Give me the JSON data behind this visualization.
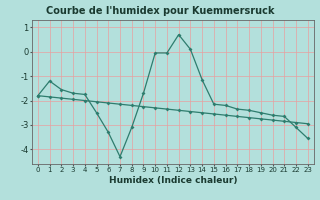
{
  "title": "Courbe de l'humidex pour Kuemmersruck",
  "xlabel": "Humidex (Indice chaleur)",
  "bg_color": "#b3e0dc",
  "grid_color": "#e8a0a0",
  "line_color": "#2e7d6e",
  "x_values": [
    0,
    1,
    2,
    3,
    4,
    5,
    6,
    7,
    8,
    9,
    10,
    11,
    12,
    13,
    14,
    15,
    16,
    17,
    18,
    19,
    20,
    21,
    22,
    23
  ],
  "line1_y": [
    -1.8,
    -1.2,
    -1.55,
    -1.7,
    -1.75,
    -2.5,
    -3.3,
    -4.3,
    -3.1,
    -1.7,
    -0.05,
    -0.05,
    0.7,
    0.1,
    -1.15,
    -2.15,
    -2.2,
    -2.35,
    -2.4,
    -2.5,
    -2.6,
    -2.65,
    -3.1,
    -3.55
  ],
  "line2_y": [
    -1.8,
    -1.85,
    -1.9,
    -1.95,
    -2.0,
    -2.05,
    -2.1,
    -2.15,
    -2.2,
    -2.25,
    -2.3,
    -2.35,
    -2.4,
    -2.45,
    -2.5,
    -2.55,
    -2.6,
    -2.65,
    -2.7,
    -2.75,
    -2.8,
    -2.85,
    -2.9,
    -2.95
  ],
  "ylim": [
    -4.6,
    1.3
  ],
  "xlim": [
    -0.5,
    23.5
  ],
  "yticks": [
    1,
    0,
    -1,
    -2,
    -3,
    -4
  ],
  "xticks": [
    0,
    1,
    2,
    3,
    4,
    5,
    6,
    7,
    8,
    9,
    10,
    11,
    12,
    13,
    14,
    15,
    16,
    17,
    18,
    19,
    20,
    21,
    22,
    23
  ],
  "title_fontsize": 7,
  "xlabel_fontsize": 6.5,
  "tick_fontsize": 5,
  "ytick_fontsize": 6
}
